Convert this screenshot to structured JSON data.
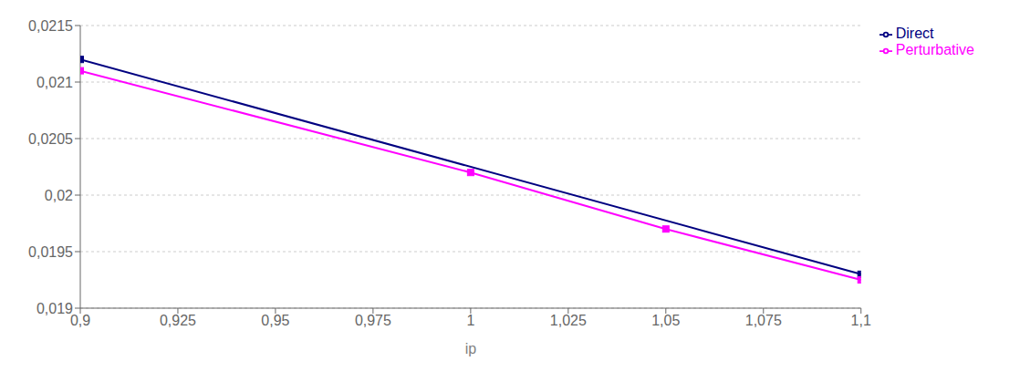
{
  "chart_data": {
    "type": "line",
    "xlabel": "ip",
    "series": [
      {
        "name": "Direct",
        "color": "#000080",
        "marker": "square",
        "x": [
          0.9,
          1.1
        ],
        "values": [
          0.0212,
          0.0193
        ]
      },
      {
        "name": "Perturbative",
        "color": "#FF00FF",
        "marker": "square",
        "x": [
          0.9,
          1.0,
          1.05,
          1.1
        ],
        "values": [
          0.0211,
          0.0202,
          0.0197,
          0.01925
        ]
      }
    ],
    "xlim": [
      0.9,
      1.1
    ],
    "ylim": [
      0.019,
      0.0215
    ],
    "xticks": [
      {
        "value": 0.9,
        "label": "0,9"
      },
      {
        "value": 0.925,
        "label": "0,925"
      },
      {
        "value": 0.95,
        "label": "0,95"
      },
      {
        "value": 0.975,
        "label": "0,975"
      },
      1,
      {
        "value": 1.025,
        "label": "1,025"
      },
      {
        "value": 1.05,
        "label": "1,05"
      },
      {
        "value": 1.075,
        "label": "1,075"
      },
      {
        "value": 1.1,
        "label": "1,1"
      }
    ],
    "yticks": [
      {
        "value": 0.019,
        "label": "0,019"
      },
      {
        "value": 0.0195,
        "label": "0,0195"
      },
      {
        "value": 0.02,
        "label": "0,02"
      },
      {
        "value": 0.0205,
        "label": "0,0205"
      },
      {
        "value": 0.021,
        "label": "0,021"
      },
      {
        "value": 0.0215,
        "label": "0,0215"
      }
    ],
    "grid": "y",
    "legend": "right"
  }
}
